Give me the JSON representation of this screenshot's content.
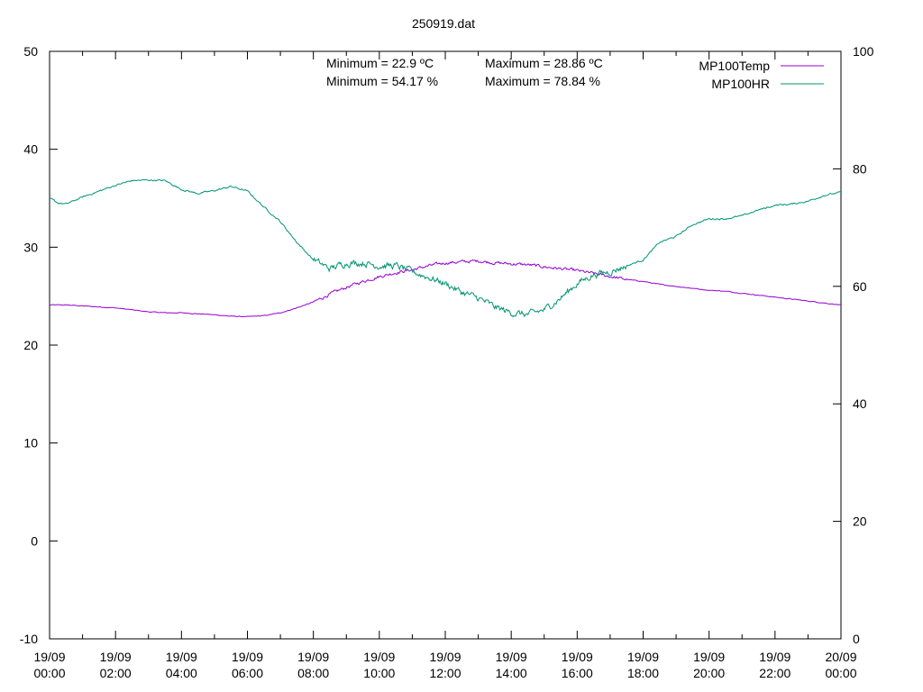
{
  "chart_data": {
    "type": "line",
    "title": "250919.dat",
    "annotations": [
      {
        "text": "Minimum = 22.9 ºC",
        "column": "left",
        "row": 1
      },
      {
        "text": "Maximum = 28.86 ºC",
        "column": "right",
        "row": 1
      },
      {
        "text": "Minimum = 54.17 %",
        "column": "left",
        "row": 2
      },
      {
        "text": "Maximum = 78.84 %",
        "column": "right",
        "row": 2
      }
    ],
    "legend_position": "top-right",
    "grid": false,
    "y_left": {
      "ylim": [
        -10,
        50
      ],
      "ticks": [
        -10,
        0,
        10,
        20,
        30,
        40,
        50
      ]
    },
    "y_right": {
      "ylim": [
        0,
        100
      ],
      "ticks": [
        0,
        20,
        40,
        60,
        80,
        100
      ]
    },
    "x": {
      "range_hours": [
        0,
        24
      ],
      "ticks": [
        {
          "hour": 0,
          "date": "19/09",
          "time": "00:00"
        },
        {
          "hour": 2,
          "date": "19/09",
          "time": "02:00"
        },
        {
          "hour": 4,
          "date": "19/09",
          "time": "04:00"
        },
        {
          "hour": 6,
          "date": "19/09",
          "time": "06:00"
        },
        {
          "hour": 8,
          "date": "19/09",
          "time": "08:00"
        },
        {
          "hour": 10,
          "date": "19/09",
          "time": "10:00"
        },
        {
          "hour": 12,
          "date": "19/09",
          "time": "12:00"
        },
        {
          "hour": 14,
          "date": "19/09",
          "time": "14:00"
        },
        {
          "hour": 16,
          "date": "19/09",
          "time": "16:00"
        },
        {
          "hour": 18,
          "date": "19/09",
          "time": "18:00"
        },
        {
          "hour": 20,
          "date": "19/09",
          "time": "20:00"
        },
        {
          "hour": 22,
          "date": "19/09",
          "time": "22:00"
        },
        {
          "hour": 24,
          "date": "20/09",
          "time": "00:00"
        }
      ]
    },
    "series": [
      {
        "name": "MP100Temp",
        "axis": "left",
        "color": "#9400d3",
        "hours": [
          0,
          0.5,
          1,
          1.5,
          2,
          2.5,
          3,
          3.5,
          4,
          4.5,
          5,
          5.5,
          6,
          6.5,
          7,
          7.5,
          8,
          8.5,
          9,
          9.5,
          10,
          10.5,
          11,
          11.5,
          12,
          12.5,
          13,
          13.5,
          14,
          14.5,
          15,
          15.5,
          16,
          16.5,
          17,
          17.5,
          18,
          18.5,
          19,
          19.5,
          20,
          20.5,
          21,
          21.5,
          22,
          22.5,
          23,
          23.5,
          24
        ],
        "values": [
          24.1,
          24.1,
          24.0,
          23.9,
          23.8,
          23.6,
          23.4,
          23.3,
          23.3,
          23.2,
          23.1,
          22.95,
          22.9,
          23.0,
          23.3,
          23.8,
          24.4,
          25.2,
          25.9,
          26.5,
          27.0,
          27.4,
          27.7,
          28.1,
          28.4,
          28.5,
          28.6,
          28.4,
          28.3,
          28.2,
          28.0,
          27.8,
          27.6,
          27.3,
          27.0,
          26.7,
          26.5,
          26.2,
          26.0,
          25.8,
          25.6,
          25.5,
          25.3,
          25.1,
          24.9,
          24.7,
          24.5,
          24.3,
          24.1
        ],
        "noise": 0.25
      },
      {
        "name": "MP100HR",
        "axis": "right",
        "color": "#009473",
        "hours": [
          0,
          0.25,
          0.5,
          1,
          1.5,
          2,
          2.5,
          3,
          3.5,
          4,
          4.5,
          5,
          5.5,
          6,
          6.5,
          7,
          7.5,
          8,
          8.5,
          9,
          9.5,
          10,
          10.5,
          11,
          11.5,
          12,
          12.5,
          13,
          13.5,
          14,
          14.5,
          15,
          15.5,
          16,
          16.5,
          17,
          17.5,
          18,
          18.5,
          19,
          19.5,
          20,
          20.5,
          21,
          21.5,
          22,
          22.5,
          23,
          23.5,
          24
        ],
        "values": [
          75.0,
          74.2,
          74.0,
          75.2,
          76.2,
          77.2,
          78.0,
          78.1,
          78.0,
          76.5,
          75.8,
          76.3,
          77.0,
          76.2,
          73.5,
          71.0,
          67.5,
          64.5,
          63.0,
          64.0,
          64.0,
          63.5,
          63.5,
          62.5,
          61.5,
          60.5,
          59.0,
          58.0,
          56.5,
          55.5,
          55.2,
          56.0,
          58.0,
          60.5,
          62.0,
          62.5,
          63.5,
          64.5,
          67.5,
          68.5,
          70.5,
          71.5,
          71.5,
          72.0,
          73.0,
          73.8,
          74.0,
          74.5,
          75.5,
          76.0
        ],
        "noise": 0.9
      }
    ]
  }
}
